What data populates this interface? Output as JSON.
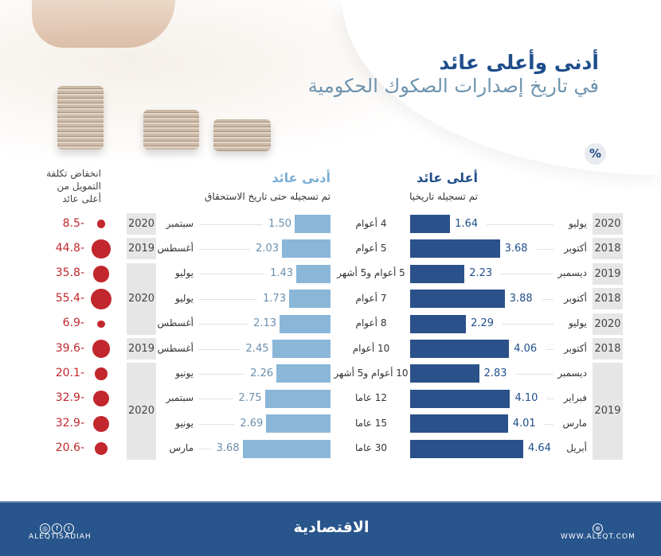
{
  "title": {
    "line1": "أدنى وأعلى عائد",
    "line2": "في تاريخ إصدارات الصكوك الحكومية"
  },
  "unit_badge": "%",
  "colors": {
    "highest_bar": "#2a5189",
    "lowest_bar": "#8ab6d8",
    "decline_dot": "#c1272d",
    "title": "#1f4e8a",
    "footer": "#27558c"
  },
  "chart_data": {
    "type": "bar",
    "categories": [
      "4 أعوام",
      "5 أعوام",
      "5 أعوام و5 أشهر",
      "7 أعوام",
      "8 أعوام",
      "10 أعوام",
      "10 أعوام و5 أشهر",
      "12 عاما",
      "15 عاما",
      "30 عاما"
    ],
    "highest": {
      "title": "أعلى عائد",
      "subtitle": "تم تسجيله تاريخيا",
      "values": [
        1.64,
        3.68,
        2.23,
        3.88,
        2.29,
        4.06,
        2.83,
        4.1,
        4.01,
        4.64
      ],
      "labels": [
        "1.64",
        "3.68",
        "2.23",
        "3.88",
        "2.29",
        "4.06",
        "2.83",
        "4.10",
        "4.01",
        "4.64"
      ],
      "months": [
        "يوليو",
        "أكتوبر",
        "ديسمبر",
        "أكتوبر",
        "يوليو",
        "أكتوبر",
        "ديسمبر",
        "فبراير",
        "مارس",
        "أبريل"
      ],
      "year_groups": [
        {
          "year": "2020",
          "rows": 1
        },
        {
          "year": "2018",
          "rows": 1
        },
        {
          "year": "2019",
          "rows": 1
        },
        {
          "year": "2018",
          "rows": 1
        },
        {
          "year": "2020",
          "rows": 1
        },
        {
          "year": "2018",
          "rows": 1
        },
        {
          "year": "2019",
          "rows": 4
        }
      ]
    },
    "lowest": {
      "title": "أدنى عائد",
      "subtitle": "تم تسجيله حتى تاريخ الاستحقاق",
      "values": [
        1.5,
        2.03,
        1.43,
        1.73,
        2.13,
        2.45,
        2.26,
        2.75,
        2.69,
        3.68
      ],
      "labels": [
        "1.50",
        "2.03",
        "1.43",
        "1.73",
        "2.13",
        "2.45",
        "2.26",
        "2.75",
        "2.69",
        "3.68"
      ],
      "months": [
        "سبتمبر",
        "أغسطس",
        "يوليو",
        "يوليو",
        "أغسطس",
        "أغسطس",
        "يونيو",
        "سبتمبر",
        "يونيو",
        "مارس"
      ],
      "year_groups": [
        {
          "year": "2020",
          "rows": 1
        },
        {
          "year": "2019",
          "rows": 1
        },
        {
          "year": "2020",
          "rows": 3
        },
        {
          "year": "2019",
          "rows": 1
        },
        {
          "year": "2020",
          "rows": 4
        }
      ]
    },
    "decline": {
      "title_lines": [
        "انخفاض تكلفة",
        "التمويل من",
        "أعلى عائد"
      ],
      "values": [
        -8.5,
        -44.8,
        -35.8,
        -55.4,
        -6.9,
        -39.6,
        -20.1,
        -32.9,
        -32.9,
        -20.6
      ],
      "labels": [
        "8.5-",
        "44.8-",
        "35.8-",
        "55.4-",
        "6.9-",
        "39.6-",
        "20.1-",
        "32.9-",
        "32.9-",
        "20.6-"
      ]
    }
  },
  "footer": {
    "social_handle": "ALEQTISADIAH",
    "logo": "الاقتصادية",
    "website": "WWW.ALEQT.COM",
    "social_icons": [
      "instagram-icon",
      "facebook-icon",
      "twitter-icon"
    ],
    "web_icon": "globe-icon"
  }
}
